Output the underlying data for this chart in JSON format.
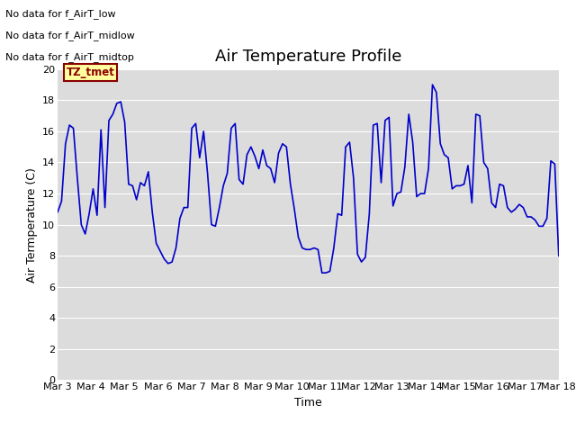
{
  "title": "Air Temperature Profile",
  "xlabel": "Time",
  "ylabel": "Air Termperature (C)",
  "annotations": [
    "No data for f_AirT_low",
    "No data for f_AirT_midlow",
    "No data for f_AirT_midtop"
  ],
  "tz_label": "TZ_tmet",
  "x_tick_labels": [
    "Mar 3",
    "Mar 4",
    "Mar 5",
    "Mar 6",
    "Mar 7",
    "Mar 8",
    "Mar 9",
    "Mar 10",
    "Mar 11",
    "Mar 12",
    "Mar 13",
    "Mar 14",
    "Mar 15",
    "Mar 16",
    "Mar 17",
    "Mar 18"
  ],
  "ylim": [
    0,
    20
  ],
  "yticks": [
    0,
    2,
    4,
    6,
    8,
    10,
    12,
    14,
    16,
    18,
    20
  ],
  "line_color": "#0000cc",
  "plot_bg_color": "#dcdcdc",
  "fig_bg_color": "#ffffff",
  "grid_color": "#ffffff",
  "title_fontsize": 13,
  "axis_fontsize": 9,
  "tick_fontsize": 8,
  "y": [
    10.8,
    11.5,
    15.2,
    16.4,
    16.2,
    13.0,
    10.0,
    9.4,
    10.7,
    12.3,
    10.6,
    16.1,
    11.1,
    16.7,
    17.1,
    17.8,
    17.9,
    16.6,
    12.6,
    12.5,
    11.6,
    12.7,
    12.5,
    13.4,
    10.8,
    8.8,
    8.3,
    7.8,
    7.5,
    7.6,
    8.5,
    10.4,
    11.1,
    11.1,
    16.2,
    16.5,
    14.3,
    16.0,
    13.3,
    10.0,
    9.9,
    11.1,
    12.5,
    13.3,
    16.2,
    16.5,
    12.9,
    12.6,
    14.5,
    15.0,
    14.4,
    13.6,
    14.8,
    13.8,
    13.6,
    12.7,
    14.6,
    15.2,
    15.0,
    12.6,
    11.0,
    9.2,
    8.5,
    8.4,
    8.4,
    8.5,
    8.4,
    6.9,
    6.9,
    7.0,
    8.5,
    10.7,
    10.6,
    15.0,
    15.3,
    13.0,
    8.1,
    7.6,
    7.9,
    10.7,
    16.4,
    16.5,
    12.7,
    16.7,
    16.9,
    11.2,
    12.0,
    12.1,
    13.7,
    17.1,
    15.3,
    11.8,
    12.0,
    12.0,
    13.6,
    19.0,
    18.5,
    15.2,
    14.5,
    14.3,
    12.3,
    12.5,
    12.5,
    12.6,
    13.8,
    11.4,
    17.1,
    17.0,
    14.0,
    13.6,
    11.4,
    11.1,
    12.6,
    12.5,
    11.1,
    10.8,
    11.0,
    11.3,
    11.1,
    10.5,
    10.5,
    10.3,
    9.9,
    9.9,
    10.4,
    14.1,
    13.9,
    8.0
  ]
}
